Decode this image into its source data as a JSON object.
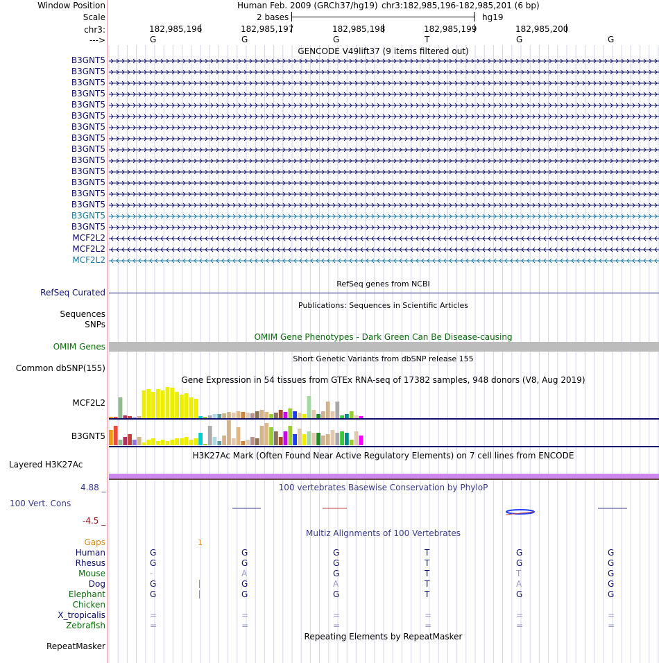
{
  "header": {
    "window_position_label": "Window Position",
    "scale_label": "Scale",
    "chrom_label": "chr3:",
    "strand_label": "--->",
    "assembly": "Human Feb. 2009 (GRCh37/hg19)",
    "position": "chr3:182,985,196-182,985,201 (6 bp)",
    "scale_text": "2 bases",
    "db": "hg19",
    "coords": [
      "182,985,196",
      "182,985,197",
      "182,985,198",
      "182,985,199",
      "182,985,200"
    ],
    "bases": [
      "G",
      "G",
      "G",
      "T",
      "G",
      "G"
    ]
  },
  "gencode": {
    "title": "GENCODE V49lift37 (9 items filtered out)",
    "items": [
      {
        "name": "B3GNT5",
        "strand": "+",
        "color": "#0d0d6b"
      },
      {
        "name": "B3GNT5",
        "strand": "+",
        "color": "#0d0d6b"
      },
      {
        "name": "B3GNT5",
        "strand": "+",
        "color": "#0d0d6b"
      },
      {
        "name": "B3GNT5",
        "strand": "+",
        "color": "#0d0d6b"
      },
      {
        "name": "B3GNT5",
        "strand": "+",
        "color": "#0d0d6b"
      },
      {
        "name": "B3GNT5",
        "strand": "+",
        "color": "#0d0d6b"
      },
      {
        "name": "B3GNT5",
        "strand": "+",
        "color": "#0d0d6b"
      },
      {
        "name": "B3GNT5",
        "strand": "+",
        "color": "#0d0d6b"
      },
      {
        "name": "B3GNT5",
        "strand": "+",
        "color": "#0d0d6b"
      },
      {
        "name": "B3GNT5",
        "strand": "+",
        "color": "#0d0d6b"
      },
      {
        "name": "B3GNT5",
        "strand": "+",
        "color": "#0d0d6b"
      },
      {
        "name": "B3GNT5",
        "strand": "+",
        "color": "#0d0d6b"
      },
      {
        "name": "B3GNT5",
        "strand": "+",
        "color": "#0d0d6b"
      },
      {
        "name": "B3GNT5",
        "strand": "+",
        "color": "#0d0d6b"
      },
      {
        "name": "B3GNT5",
        "strand": "+",
        "color": "#1f7a9f"
      },
      {
        "name": "B3GNT5",
        "strand": "+",
        "color": "#0d0d6b"
      },
      {
        "name": "MCF2L2",
        "strand": "-",
        "color": "#0d0d6b"
      },
      {
        "name": "MCF2L2",
        "strand": "-",
        "color": "#0d0d6b"
      },
      {
        "name": "MCF2L2",
        "strand": "-",
        "color": "#1f7a9f"
      }
    ]
  },
  "refseq": {
    "title": "RefSeq genes from NCBI",
    "label": "RefSeq Curated"
  },
  "publications": {
    "title": "Publications: Sequences in Scientific Articles",
    "label1": "Sequences",
    "label2": "SNPs"
  },
  "omim": {
    "title": "OMIM Gene Phenotypes - Dark Green Can Be Disease-causing",
    "label": "OMIM Genes"
  },
  "dbsnp": {
    "title": "Short Genetic Variants from dbSNP release 155",
    "label": "Common dbSNP(155)"
  },
  "gtex": {
    "title": "Gene Expression in 54 tissues from GTEx RNA-seq of 17382 samples, 948 donors (V8, Aug 2019)",
    "genes": [
      {
        "name": "MCF2L2",
        "values": [
          2,
          2,
          30,
          4,
          3,
          1,
          3,
          40,
          42,
          38,
          42,
          40,
          45,
          44,
          38,
          34,
          36,
          30,
          28,
          3,
          2,
          4,
          6,
          6,
          7,
          9,
          8,
          10,
          9,
          8,
          7,
          10,
          12,
          9,
          6,
          8,
          12,
          9,
          14,
          10,
          8,
          6,
          32,
          12,
          6,
          10,
          24,
          10,
          24,
          4,
          6,
          10,
          4,
          3
        ],
        "colors": [
          "#f39c12",
          "#e74c3c",
          "#8fbc8f",
          "#b03060",
          "#c04040",
          "#9370db",
          "#d2b48c",
          "#eeee00",
          "#eeee00",
          "#eeee00",
          "#eeee00",
          "#eeee00",
          "#eeee00",
          "#eeee00",
          "#eeee00",
          "#eeee00",
          "#eeee00",
          "#eeee00",
          "#eeee00",
          "#00ced1",
          "#9acd32",
          "#aaaaaa",
          "#add8e6",
          "#5f9ea0",
          "#d2b48c",
          "#d2b48c",
          "#e3c8b0",
          "#deb887",
          "#cd853f",
          "#e3c8b0",
          "#bc8f8f",
          "#8b7355",
          "#d2b48c",
          "#deb887",
          "#9acd32",
          "#8b7355",
          "#a0522d",
          "#cc00ff",
          "#9acd32",
          "#1e3cff",
          "#e3c8b0",
          "#eeee00",
          "#a3d9a3",
          "#e3c8b0",
          "#228b22",
          "#d2b48c",
          "#d2b48c",
          "#e3c8b0",
          "#a9a9a9",
          "#32cd32",
          "#008b8b",
          "#9acd32",
          "#e3c8b0",
          "#ff00ff"
        ]
      },
      {
        "name": "B3GNT5",
        "values": [
          22,
          28,
          8,
          12,
          16,
          8,
          12,
          4,
          8,
          10,
          6,
          8,
          6,
          8,
          10,
          10,
          12,
          8,
          10,
          18,
          2,
          28,
          12,
          6,
          14,
          36,
          10,
          26,
          6,
          8,
          12,
          10,
          28,
          32,
          26,
          20,
          12,
          20,
          28,
          16,
          24,
          16,
          20,
          18,
          18,
          14,
          16,
          22,
          18,
          20,
          18,
          8,
          20,
          14
        ]
      }
    ]
  },
  "h3k27ac": {
    "title": "H3K27Ac Mark (Often Found Near Active Regulatory Elements) on 7 cell lines from ENCODE",
    "label": "Layered H3K27Ac"
  },
  "phylop": {
    "title": "100 vertebrates Basewise Conservation by PhyloP",
    "label": "100 Vert. Cons",
    "max": "4.88",
    "min": "-4.5"
  },
  "multiz": {
    "title": "Multiz Alignments of 100 Vertebrates",
    "gaps_label": "Gaps",
    "gaps_value": "1",
    "species": [
      {
        "name": "Human",
        "color": "#0d0d6b",
        "bases": [
          "G",
          "G",
          "G",
          "T",
          "G",
          "G"
        ],
        "dim": [
          false,
          false,
          false,
          false,
          false,
          false
        ]
      },
      {
        "name": "Rhesus",
        "color": "#0d0d6b",
        "bases": [
          "G",
          "G",
          "G",
          "T",
          "G",
          "G"
        ],
        "dim": [
          false,
          false,
          false,
          false,
          false,
          false
        ]
      },
      {
        "name": "Mouse",
        "color": "#0a6b0a",
        "bases": [
          "-",
          "A",
          "G",
          "T",
          "T",
          "G"
        ],
        "dim": [
          true,
          true,
          false,
          false,
          true,
          false
        ]
      },
      {
        "name": "Dog",
        "color": "#0d0d6b",
        "bases": [
          "G",
          "G",
          "A",
          "T",
          "A",
          "G"
        ],
        "dim": [
          false,
          false,
          true,
          false,
          true,
          false
        ]
      },
      {
        "name": "Elephant",
        "color": "#0a6b0a",
        "bases": [
          "G",
          "G",
          "G",
          "T",
          "G",
          "G"
        ],
        "dim": [
          false,
          false,
          false,
          false,
          false,
          false
        ]
      },
      {
        "name": "Chicken",
        "color": "#0a6b0a",
        "bases": [
          "",
          "",
          "",
          "",
          "",
          ""
        ],
        "dim": [
          false,
          false,
          false,
          false,
          false,
          false
        ]
      },
      {
        "name": "X_tropicalis",
        "color": "#0d0d6b",
        "bases": [
          "=",
          "=",
          "=",
          "=",
          "=",
          "="
        ],
        "dim": [
          true,
          true,
          true,
          true,
          true,
          true
        ]
      },
      {
        "name": "Zebrafish",
        "color": "#0a6b0a",
        "bases": [
          "=",
          "=",
          "=",
          "=",
          "=",
          "="
        ],
        "dim": [
          true,
          true,
          true,
          true,
          true,
          true
        ]
      }
    ]
  },
  "repeatmasker": {
    "title": "Repeating Elements by RepeatMasker",
    "label": "RepeatMasker"
  }
}
